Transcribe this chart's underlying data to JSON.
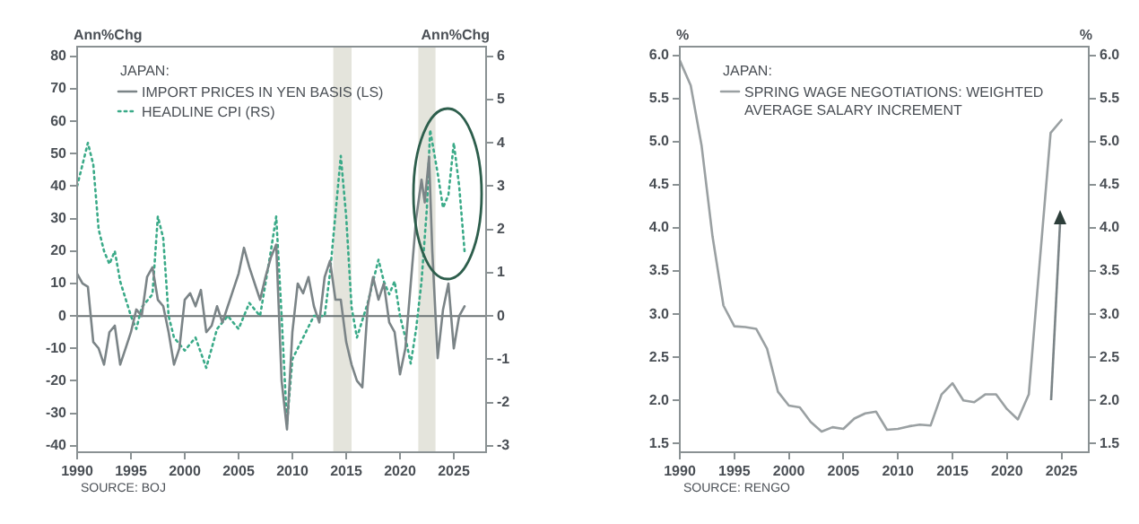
{
  "chart_data": [
    {
      "type": "line",
      "ylabel": "Ann%Chg",
      "y2label": "Ann%Chg",
      "legend_title": "JAPAN:",
      "legend": "top left",
      "marker": "none",
      "grid": false,
      "xlim": [
        1990,
        2028
      ],
      "xticks": [
        1990,
        1995,
        2000,
        2005,
        2010,
        2015,
        2020,
        2025
      ],
      "ylim": [
        -42,
        83
      ],
      "yticks": [
        -40,
        -30,
        -20,
        -10,
        0,
        10,
        20,
        30,
        40,
        50,
        60,
        70,
        80
      ],
      "y2lim": [
        -3.15,
        6.225
      ],
      "y2ticks": [
        -3,
        -2,
        -1,
        0,
        1,
        2,
        3,
        4,
        5,
        6
      ],
      "series": [
        {
          "name": "IMPORT PRICES IN YEN BASIS (LS)",
          "color": "#7b8487",
          "line_style": "solid",
          "x": [
            1990,
            1990.5,
            1991,
            1991.5,
            1992,
            1992.5,
            1993,
            1993.5,
            1994,
            1994.5,
            1995,
            1995.5,
            1996,
            1996.5,
            1997,
            1997.5,
            1998,
            1998.5,
            1999,
            1999.5,
            2000,
            2000.5,
            2001,
            2001.5,
            2002,
            2002.5,
            2003,
            2003.5,
            2004,
            2004.5,
            2005,
            2005.5,
            2006,
            2006.5,
            2007,
            2007.5,
            2008,
            2008.5,
            2009,
            2009.5,
            2010,
            2010.5,
            2011,
            2011.5,
            2012,
            2012.5,
            2013,
            2013.5,
            2014,
            2014.5,
            2015,
            2015.5,
            2016,
            2016.5,
            2017,
            2017.5,
            2018,
            2018.5,
            2019,
            2019.5,
            2020,
            2020.5,
            2021,
            2021.5,
            2022,
            2022.3,
            2022.7,
            2023,
            2023.5,
            2024,
            2024.5,
            2025,
            2025.5,
            2026
          ],
          "values": [
            13,
            10,
            9,
            -8,
            -10,
            -15,
            -5,
            -3,
            -15,
            -10,
            -5,
            2,
            0,
            12,
            15,
            5,
            3,
            -5,
            -15,
            -10,
            5,
            7,
            3,
            8,
            -5,
            -3,
            3,
            -2,
            3,
            8,
            13,
            21,
            15,
            10,
            5,
            12,
            18,
            22,
            -20,
            -35,
            -5,
            10,
            7,
            12,
            3,
            -2,
            12,
            17,
            5,
            5,
            -8,
            -15,
            -20,
            -22,
            3,
            12,
            5,
            10,
            -2,
            -5,
            -18,
            -10,
            10,
            30,
            42,
            35,
            49,
            20,
            -13,
            2,
            10,
            -10,
            0,
            3
          ]
        },
        {
          "name": "HEADLINE CPI (RS)",
          "color": "#3aaa88",
          "line_style": "dotted",
          "axis": "y2",
          "x": [
            1990,
            1990.5,
            1991,
            1991.5,
            1992,
            1992.5,
            1993,
            1993.5,
            1994,
            1995,
            1995.5,
            1996,
            1997,
            1997.5,
            1998,
            1998.5,
            1999,
            2000,
            2001,
            2002,
            2003,
            2004,
            2005,
            2006,
            2007,
            2008,
            2008.5,
            2009,
            2009.5,
            2010,
            2011,
            2012,
            2013,
            2013.5,
            2014.5,
            2015,
            2015.5,
            2016,
            2017,
            2018,
            2018.5,
            2019,
            2019.5,
            2020,
            2020.5,
            2021,
            2021.5,
            2022,
            2022.5,
            2022.8,
            2023.5,
            2024,
            2024.5,
            2025,
            2025.5,
            2026
          ],
          "values": [
            3,
            3.5,
            4,
            3.5,
            2,
            1.5,
            1.2,
            1.5,
            0.8,
            0,
            -0.3,
            0.2,
            0.5,
            2.3,
            1.8,
            0,
            -0.5,
            -0.8,
            -0.5,
            -1.2,
            -0.3,
            0,
            -0.3,
            0.3,
            0,
            1.5,
            2.3,
            0,
            -2.5,
            -1,
            -0.5,
            0,
            0,
            1,
            3.7,
            2.3,
            0.2,
            -0.5,
            0.3,
            1.3,
            0.8,
            0.5,
            0.8,
            0,
            -0.5,
            -1.1,
            -0.3,
            0.8,
            2.5,
            4.3,
            3.3,
            2.5,
            2.8,
            4,
            3,
            1.5
          ]
        }
      ],
      "bands": [
        {
          "axis": "x",
          "from": 2013.8,
          "to": 2015.5,
          "color": "#e4e4dc"
        },
        {
          "axis": "x",
          "from": 2021.7,
          "to": 2023.3,
          "color": "#e4e4dc"
        }
      ],
      "ref_lines": [
        {
          "axis": "y",
          "value": 0,
          "color": "#6b7375"
        }
      ],
      "annotations": [
        "SOURCE: BOJ"
      ]
    },
    {
      "type": "line",
      "ylabel": "%",
      "y2label": "%",
      "legend_title": "JAPAN:",
      "legend": "top left",
      "marker": "none",
      "grid": false,
      "xlim": [
        1990,
        2027.5
      ],
      "xticks": [
        1990,
        1995,
        2000,
        2005,
        2010,
        2015,
        2020,
        2025
      ],
      "ylim": [
        1.4,
        6.1
      ],
      "yticks": [
        1.5,
        {
          "value": 2,
          "label": "2.0"
        },
        2.5,
        {
          "value": 3,
          "label": "3.0"
        },
        3.5,
        {
          "value": 4,
          "label": "4.0"
        },
        4.5,
        {
          "value": 5,
          "label": "5.0"
        },
        5.5,
        {
          "value": 6,
          "label": "6.0"
        }
      ],
      "y2lim": [
        1.4,
        6.1
      ],
      "y2ticks": [
        1.5,
        {
          "value": 2,
          "label": "2.0"
        },
        2.5,
        {
          "value": 3,
          "label": "3.0"
        },
        3.5,
        {
          "value": 4,
          "label": "4.0"
        },
        4.5,
        {
          "value": 5,
          "label": "5.0"
        },
        5.5,
        {
          "value": 6,
          "label": "6.0"
        }
      ],
      "x": [
        1990,
        1991,
        1992,
        1993,
        1994,
        1995,
        1996,
        1997,
        1998,
        1999,
        2000,
        2001,
        2002,
        2003,
        2004,
        2005,
        2006,
        2007,
        2008,
        2009,
        2010,
        2011,
        2012,
        2013,
        2014,
        2015,
        2016,
        2017,
        2018,
        2019,
        2020,
        2021,
        2022,
        2023,
        2024,
        2025
      ],
      "series": [
        {
          "name": "SPRING WAGE NEGOTIATIONS: WEIGHTED AVERAGE SALARY INCREMENT",
          "color": "#9aa0a2",
          "line_style": "solid",
          "values": [
            5.94,
            5.65,
            4.95,
            3.9,
            3.1,
            2.86,
            2.85,
            2.83,
            2.6,
            2.1,
            1.94,
            1.92,
            1.75,
            1.64,
            1.69,
            1.67,
            1.79,
            1.85,
            1.87,
            1.66,
            1.67,
            1.7,
            1.72,
            1.71,
            2.07,
            2.2,
            2,
            1.98,
            2.07,
            2.07,
            1.9,
            1.78,
            2.07,
            3.6,
            5.1,
            5.25
          ]
        }
      ],
      "annotations": [
        "SOURCE: RENGO"
      ]
    }
  ]
}
